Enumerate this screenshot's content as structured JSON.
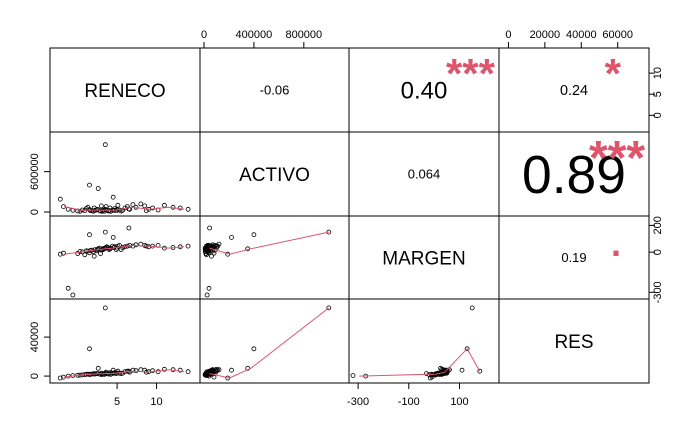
{
  "chart_data": {
    "type": "scatter-matrix",
    "variables": [
      "RENECO",
      "ACTIVO",
      "MARGEN",
      "RES"
    ],
    "correlations": [
      {
        "row": 0,
        "col": 1,
        "value": "-0.06",
        "stars": ""
      },
      {
        "row": 0,
        "col": 2,
        "value": "0.40",
        "stars": "***"
      },
      {
        "row": 0,
        "col": 3,
        "value": "0.24",
        "stars": "*"
      },
      {
        "row": 1,
        "col": 2,
        "value": "0.064",
        "stars": ""
      },
      {
        "row": 1,
        "col": 3,
        "value": "0.89",
        "stars": "***"
      },
      {
        "row": 2,
        "col": 3,
        "value": "0.19",
        "stars": "."
      }
    ],
    "axes": {
      "RENECO": {
        "range": [
          -3,
          15
        ],
        "ticks": [
          5,
          10
        ],
        "tick_labels": [
          "5",
          "10"
        ]
      },
      "ACTIVO": {
        "range": [
          0,
          1130000
        ],
        "ticks": [
          0,
          400000,
          800000
        ],
        "tick_labels": [
          "0",
          "400000",
          "800000"
        ]
      },
      "MARGEN": {
        "range": [
          -320,
          240
        ],
        "ticks": [
          -300,
          -100,
          100
        ],
        "tick_labels": [
          "-300",
          "-100",
          "100"
        ],
        "left_ticks": [
          200,
          0,
          -300
        ],
        "left_tick_labels": [
          "200",
          "0",
          "-300"
        ]
      },
      "RES": {
        "range": [
          -3000,
          75000
        ],
        "ticks": [
          0,
          20000,
          40000,
          60000
        ],
        "tick_labels": [
          "0",
          "20000",
          "40000",
          "60000"
        ],
        "left_ticks": [
          0,
          40000
        ],
        "left_tick_labels": [
          "0",
          "40000"
        ]
      },
      "RENECO_right": {
        "ticks": [
          0,
          5,
          10
        ],
        "tick_labels": [
          "0",
          "5",
          "10"
        ]
      },
      "ACTIVO_left": {
        "ticks": [
          0,
          600000
        ],
        "tick_labels": [
          "0",
          "600000"
        ]
      }
    },
    "observations": {
      "RENECO": [
        -2.2,
        -1.8,
        -1.2,
        -0.6,
        0,
        0.3,
        0.6,
        0.9,
        1.1,
        1.3,
        1.5,
        1.6,
        1.8,
        2,
        2.1,
        2.2,
        2.4,
        2.5,
        2.6,
        2.8,
        2.9,
        3,
        3.1,
        3.2,
        3.3,
        3.4,
        3.5,
        3.6,
        3.7,
        3.9,
        4,
        4.1,
        4.2,
        4.4,
        4.5,
        4.6,
        4.7,
        4.9,
        5,
        5.1,
        5.3,
        5.5,
        5.7,
        6,
        6.3,
        6.6,
        7,
        7.4,
        8,
        8.5,
        9,
        9.5,
        10.2,
        11,
        12.1,
        13,
        14,
        1.5,
        3.5,
        6.5,
        8.7
      ],
      "ACTIVO": [
        190000,
        80000,
        40000,
        25000,
        15000,
        10000,
        30000,
        20000,
        50000,
        70000,
        35000,
        22000,
        18000,
        12000,
        60000,
        25000,
        30000,
        40000,
        350000,
        20000,
        15000,
        90000,
        10000,
        25000,
        30000,
        12000,
        40000,
        80000,
        25000,
        15000,
        20000,
        60000,
        10000,
        30000,
        220000,
        25000,
        50000,
        20000,
        40000,
        100000,
        30000,
        15000,
        25000,
        60000,
        80000,
        40000,
        110000,
        70000,
        120000,
        90000,
        40000,
        60000,
        30000,
        100000,
        70000,
        60000,
        40000,
        400000,
        1000000,
        45000,
        20000
      ],
      "MARGEN": [
        -15,
        -8,
        -270,
        -320,
        -10,
        5,
        2,
        -20,
        10,
        8,
        -5,
        12,
        15,
        5,
        -30,
        18,
        10,
        20,
        25,
        30,
        -10,
        15,
        22,
        18,
        25,
        30,
        28,
        35,
        40,
        32,
        20,
        25,
        30,
        45,
        110,
        35,
        40,
        20,
        30,
        45,
        50,
        20,
        35,
        40,
        45,
        50,
        45,
        55,
        60,
        50,
        40,
        45,
        50,
        30,
        35,
        40,
        45,
        130,
        150,
        180,
        45
      ],
      "RES": [
        -2000,
        -1000,
        0,
        500,
        800,
        1000,
        1200,
        1500,
        1800,
        2000,
        1500,
        1800,
        2000,
        2200,
        2500,
        2000,
        2400,
        2600,
        8000,
        2000,
        1800,
        3000,
        1500,
        2200,
        2500,
        1800,
        3000,
        4000,
        2500,
        2000,
        2500,
        3500,
        1800,
        3000,
        6000,
        2800,
        3500,
        2500,
        3200,
        5000,
        3000,
        2400,
        3000,
        4500,
        5000,
        4000,
        6000,
        5500,
        6500,
        6000,
        4500,
        5500,
        4500,
        7000,
        6500,
        6000,
        4500,
        28000,
        70000,
        5000,
        4000
      ]
    }
  }
}
